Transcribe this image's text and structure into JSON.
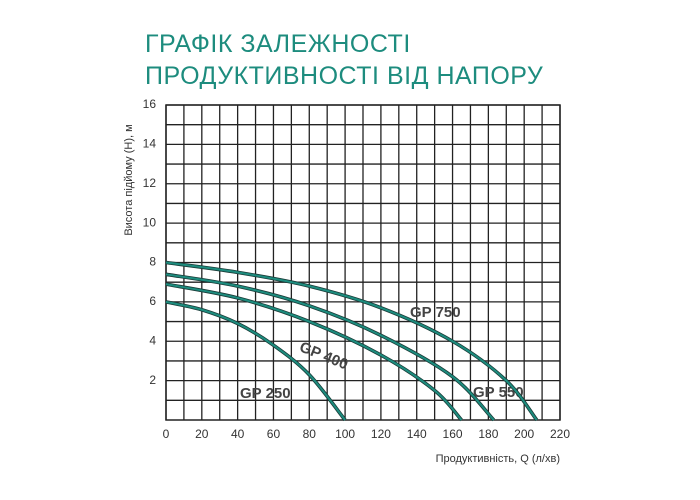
{
  "chart_data": {
    "type": "line",
    "title": [
      "ГРАФІК ЗАЛЕЖНОСТІ",
      "ПРОДУКТИВНОСТІ ВІД НАПОРУ"
    ],
    "x_label": "Продуктивність, Q (л/хв)",
    "y_label": "Висота підйому (Н), м",
    "xlim": [
      0,
      220
    ],
    "xticks": [
      0,
      20,
      40,
      60,
      80,
      100,
      120,
      140,
      160,
      180,
      200,
      220
    ],
    "ylim": [
      0,
      16
    ],
    "yticks": [
      2,
      4,
      6,
      8,
      10,
      12,
      14,
      16
    ],
    "grid": true,
    "series": [
      {
        "name": "GP 250",
        "color": "#1d8c7e",
        "x": [
          0,
          20,
          40,
          60,
          80,
          100
        ],
        "values": [
          6,
          5.6,
          4.9,
          3.8,
          2.3,
          0
        ]
      },
      {
        "name": "GP 400",
        "color": "#1d8c7e",
        "x": [
          0,
          40,
          80,
          120,
          150,
          165
        ],
        "values": [
          6.9,
          6.2,
          5,
          3.3,
          1.5,
          0
        ]
      },
      {
        "name": "GP 550",
        "color": "#1d8c7e",
        "x": [
          0,
          40,
          80,
          120,
          160,
          183
        ],
        "values": [
          7.4,
          6.8,
          5.8,
          4.3,
          2.2,
          0
        ]
      },
      {
        "name": "GP 750",
        "color": "#1d8c7e",
        "x": [
          0,
          40,
          80,
          120,
          160,
          190,
          207
        ],
        "values": [
          8,
          7.5,
          6.8,
          5.7,
          4,
          2,
          0
        ]
      }
    ]
  }
}
